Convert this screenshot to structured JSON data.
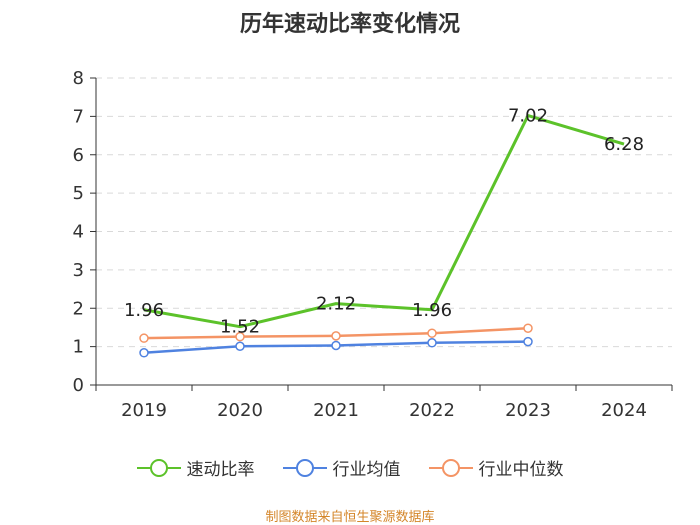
{
  "chart_data": {
    "type": "line",
    "title": "历年速动比率变化情况",
    "categories": [
      "2019",
      "2020",
      "2021",
      "2022",
      "2023",
      "2024"
    ],
    "yticks": [
      "0",
      "1",
      "2",
      "3",
      "4",
      "5",
      "6",
      "7",
      "8"
    ],
    "ylim": [
      0,
      8
    ],
    "series": [
      {
        "name": "速动比率",
        "color": "#5cc22a",
        "values": [
          1.96,
          1.52,
          2.12,
          1.96,
          7.02,
          6.28
        ],
        "labels": [
          "1.96",
          "1.52",
          "2.12",
          "1.96",
          "7.02",
          "6.28"
        ]
      },
      {
        "name": "行业均值",
        "color": "#4f82e0",
        "values": [
          0.84,
          1.01,
          1.03,
          1.1,
          1.13,
          null
        ]
      },
      {
        "name": "行业中位数",
        "color": "#f49465",
        "values": [
          1.22,
          1.26,
          1.28,
          1.35,
          1.48,
          null
        ]
      }
    ],
    "source": "制图数据来自恒生聚源数据库"
  }
}
